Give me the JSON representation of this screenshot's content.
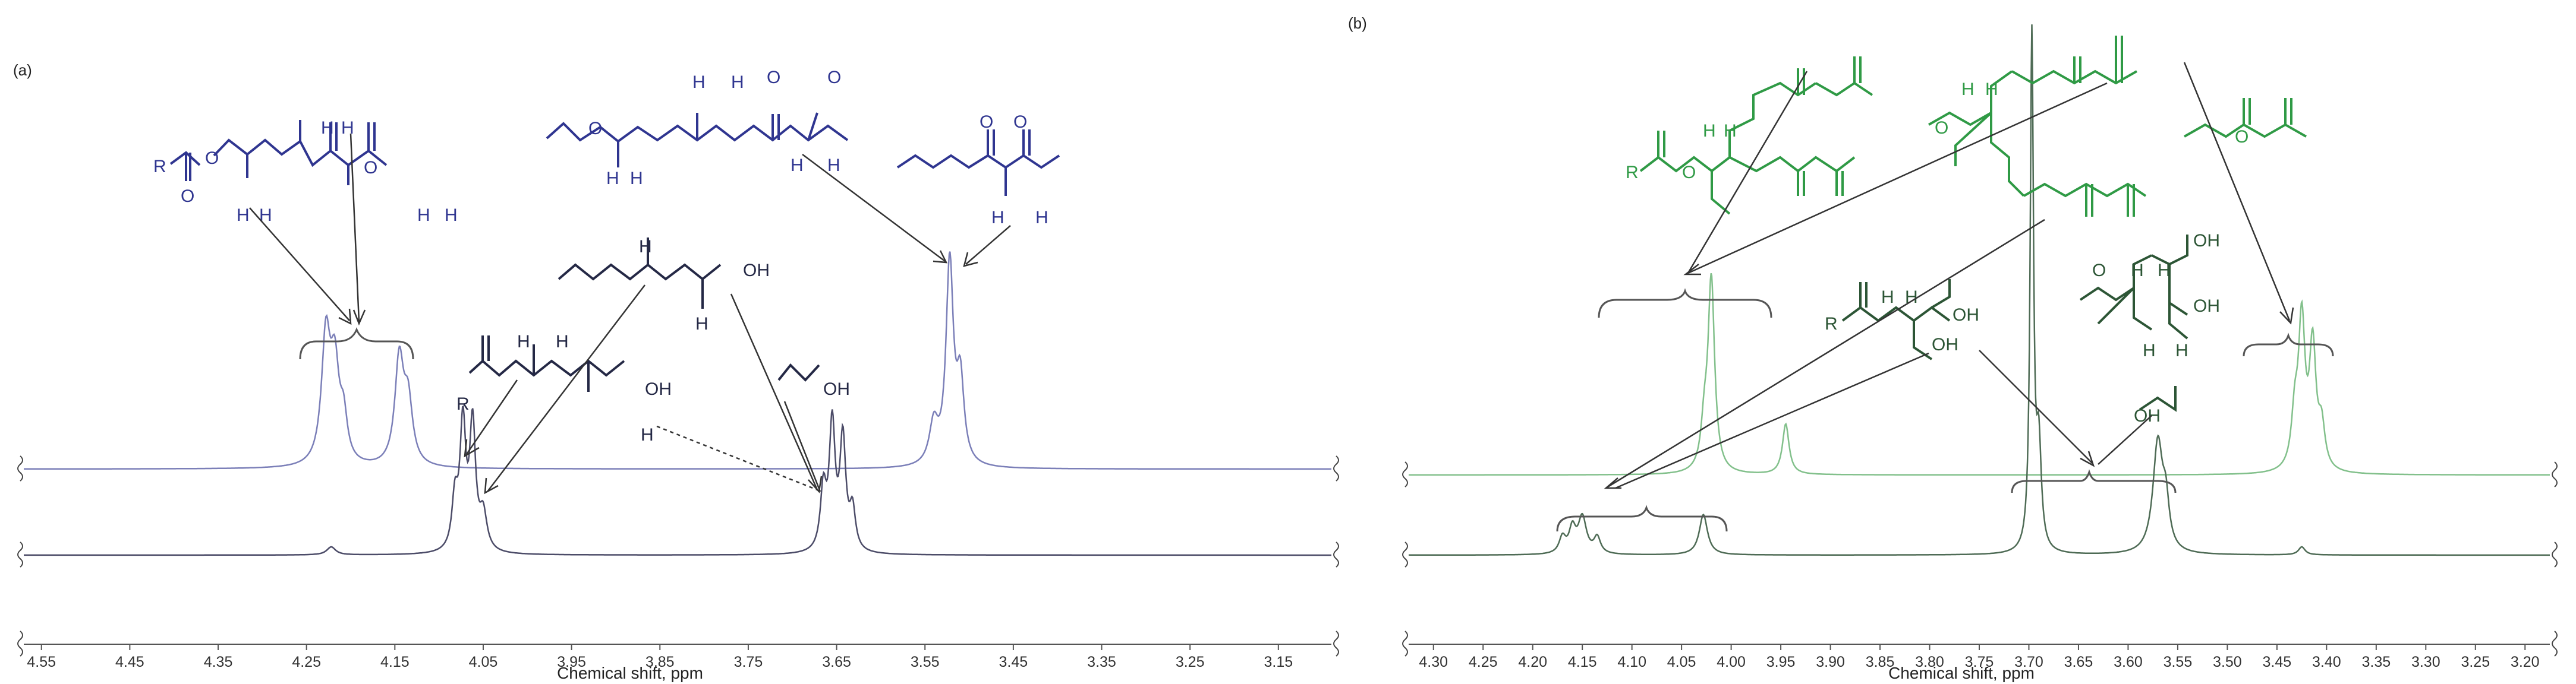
{
  "figure": {
    "panels": [
      {
        "label": "(a)",
        "xlabel": "Chemical shift, ppm",
        "ticks": [
          "4.55",
          "4.45",
          "4.35",
          "4.25",
          "4.15",
          "4.05",
          "3.95",
          "3.85",
          "3.75",
          "3.65",
          "3.55",
          "3.45",
          "3.35",
          "3.25",
          "3.15"
        ],
        "colors": {
          "top": "#7b7fb8",
          "bottom": "#4c4c68",
          "structure": "#2f3590"
        },
        "structure_labels": {
          "r": "R",
          "oh": "OH",
          "h": "H",
          "o": "O"
        }
      },
      {
        "label": "(b)",
        "xlabel": "Chemical shift, ppm",
        "ticks": [
          "4.30",
          "4.25",
          "4.20",
          "4.15",
          "4.10",
          "4.05",
          "4.00",
          "3.95",
          "3.90",
          "3.85",
          "3.80",
          "3.75",
          "3.70",
          "3.65",
          "3.60",
          "3.55",
          "3.50",
          "3.45",
          "3.40",
          "3.35",
          "3.30",
          "3.25",
          "3.20"
        ],
        "colors": {
          "top": "#82c08b",
          "bottom": "#4e6b55",
          "structure": "#2f9a45"
        },
        "structure_labels": {
          "r": "R",
          "oh": "OH",
          "h": "H",
          "o": "O"
        }
      }
    ]
  },
  "chart_data": [
    {
      "type": "line",
      "title": "",
      "xlabel": "Chemical shift, ppm",
      "xlim": [
        4.57,
        3.09
      ],
      "x_reversed": true,
      "grid": false,
      "series": [
        {
          "peaks": [
            {
              "x": 4.228,
              "h": 0.62,
              "w": 0.006
            },
            {
              "x": 4.218,
              "h": 0.45,
              "w": 0.006
            },
            {
              "x": 4.208,
              "h": 0.2,
              "w": 0.005
            },
            {
              "x": 4.145,
              "h": 0.52,
              "w": 0.006
            },
            {
              "x": 4.135,
              "h": 0.3,
              "w": 0.006
            },
            {
              "x": 3.54,
              "h": 0.2,
              "w": 0.006
            },
            {
              "x": 3.522,
              "h": 1.0,
              "w": 0.005
            },
            {
              "x": 3.51,
              "h": 0.4,
              "w": 0.005
            }
          ]
        },
        {
          "peaks": [
            {
              "x": 4.222,
              "h": 0.04,
              "w": 0.006
            },
            {
              "x": 4.082,
              "h": 0.25,
              "w": 0.004
            },
            {
              "x": 4.073,
              "h": 0.62,
              "w": 0.004
            },
            {
              "x": 4.062,
              "h": 0.62,
              "w": 0.004
            },
            {
              "x": 4.05,
              "h": 0.18,
              "w": 0.005
            },
            {
              "x": 3.665,
              "h": 0.3,
              "w": 0.004
            },
            {
              "x": 3.655,
              "h": 0.62,
              "w": 0.004
            },
            {
              "x": 3.643,
              "h": 0.55,
              "w": 0.004
            },
            {
              "x": 3.632,
              "h": 0.2,
              "w": 0.004
            }
          ]
        }
      ]
    },
    {
      "type": "line",
      "title": "",
      "xlabel": "Chemical shift, ppm",
      "xlim": [
        4.325,
        3.175
      ],
      "x_reversed": true,
      "grid": false,
      "series": [
        {
          "peaks": [
            {
              "x": 4.027,
              "h": 0.2,
              "w": 0.004
            },
            {
              "x": 4.02,
              "h": 0.95,
              "w": 0.004
            },
            {
              "x": 3.945,
              "h": 0.25,
              "w": 0.004
            },
            {
              "x": 3.432,
              "h": 0.25,
              "w": 0.004
            },
            {
              "x": 3.425,
              "h": 0.72,
              "w": 0.004
            },
            {
              "x": 3.414,
              "h": 0.6,
              "w": 0.004
            },
            {
              "x": 3.405,
              "h": 0.2,
              "w": 0.004
            }
          ]
        },
        {
          "peaks": [
            {
              "x": 4.17,
              "h": 0.08,
              "w": 0.004
            },
            {
              "x": 4.16,
              "h": 0.12,
              "w": 0.004
            },
            {
              "x": 4.15,
              "h": 0.18,
              "w": 0.005
            },
            {
              "x": 4.135,
              "h": 0.08,
              "w": 0.004
            },
            {
              "x": 4.028,
              "h": 0.2,
              "w": 0.005
            },
            {
              "x": 3.697,
              "h": 2.55,
              "w": 0.002
            },
            {
              "x": 3.69,
              "h": 0.5,
              "w": 0.003
            },
            {
              "x": 3.57,
              "h": 0.55,
              "w": 0.006
            },
            {
              "x": 3.562,
              "h": 0.2,
              "w": 0.004
            },
            {
              "x": 3.425,
              "h": 0.04,
              "w": 0.004
            }
          ]
        }
      ]
    }
  ]
}
